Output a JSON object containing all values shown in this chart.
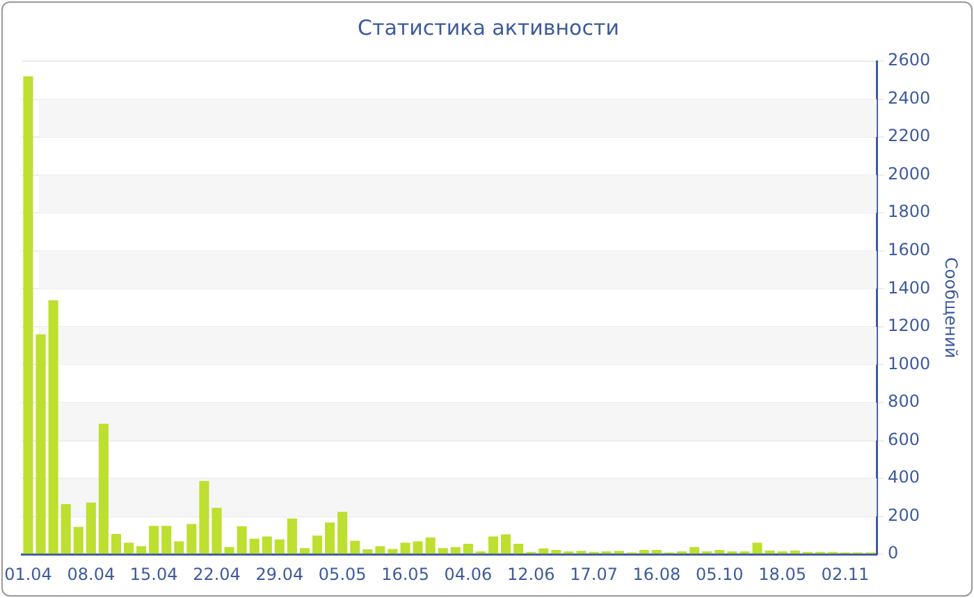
{
  "chart_data": {
    "type": "bar",
    "title": "Статистика активности",
    "y2label": "Сообщений",
    "categories": [
      "01.04",
      null,
      null,
      null,
      null,
      "08.04",
      null,
      null,
      null,
      null,
      "15.04",
      null,
      null,
      null,
      null,
      "22.04",
      null,
      null,
      null,
      null,
      "29.04",
      null,
      null,
      null,
      null,
      "05.05",
      null,
      null,
      null,
      null,
      "16.05",
      null,
      null,
      null,
      null,
      "04.06",
      null,
      null,
      null,
      null,
      "12.06",
      null,
      null,
      null,
      null,
      "17.07",
      null,
      null,
      null,
      null,
      "16.08",
      null,
      null,
      null,
      null,
      "05.10",
      null,
      null,
      null,
      null,
      "18.05",
      null,
      null,
      null,
      null,
      "02.11",
      null,
      null
    ],
    "series": [
      {
        "color": "#bddf2f",
        "axis": "y2",
        "values": [
          2520,
          1160,
          1340,
          265,
          145,
          273,
          688,
          107,
          61,
          43,
          150,
          150,
          69,
          160,
          387,
          245,
          38,
          148,
          82,
          94,
          79,
          189,
          33,
          99,
          168,
          224,
          71,
          26,
          43,
          28,
          61,
          69,
          89,
          33,
          38,
          56,
          15,
          94,
          105,
          56,
          13,
          31,
          23,
          15,
          18,
          13,
          15,
          18,
          10,
          23,
          23,
          10,
          15,
          38,
          15,
          23,
          15,
          15,
          61,
          20,
          15,
          20,
          13,
          13,
          13,
          10,
          10,
          10
        ]
      }
    ],
    "y2lim": [
      0,
      2600
    ],
    "y2ticks": [
      0,
      200,
      400,
      600,
      800,
      1000,
      1200,
      1400,
      1600,
      1800,
      2000,
      2200,
      2400,
      2600
    ],
    "bands": [
      {
        "axis": "y2",
        "from": 200,
        "to": 400,
        "color": "#f6f6f6"
      },
      {
        "axis": "y2",
        "from": 600,
        "to": 800,
        "color": "#f6f6f6"
      },
      {
        "axis": "y2",
        "from": 1000,
        "to": 1200,
        "color": "#f6f6f6"
      },
      {
        "axis": "y2",
        "from": 1400,
        "to": 1600,
        "color": "#f6f6f6"
      },
      {
        "axis": "y2",
        "from": 1800,
        "to": 2000,
        "color": "#f6f6f6"
      },
      {
        "axis": "y2",
        "from": 2200,
        "to": 2400,
        "color": "#f6f6f6"
      }
    ],
    "grid": "y",
    "legend": false
  }
}
